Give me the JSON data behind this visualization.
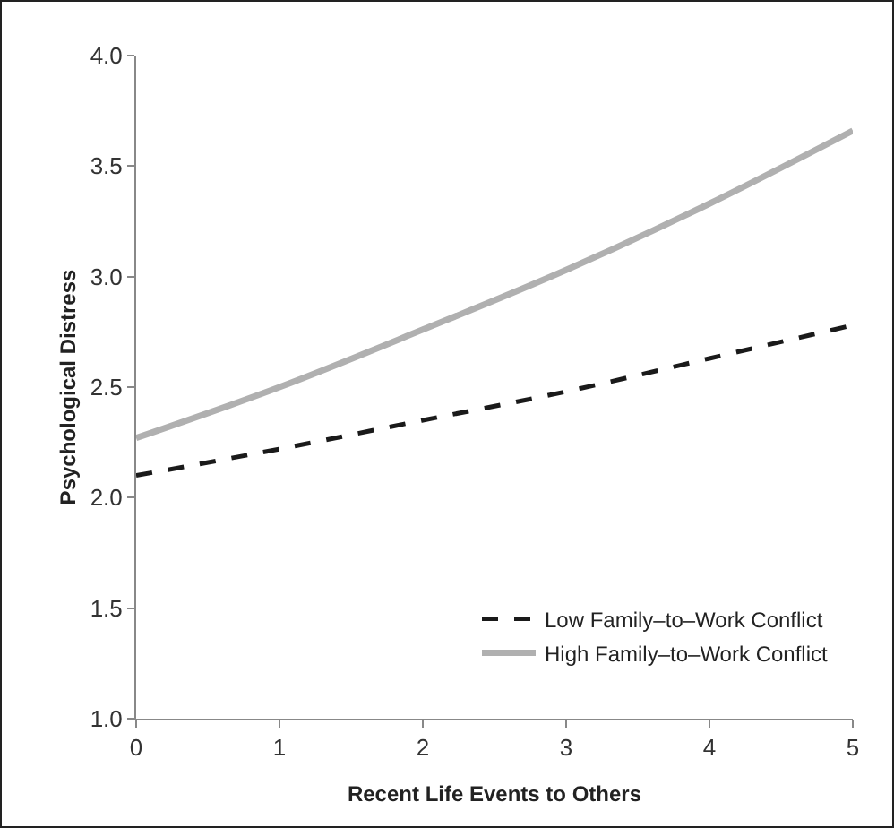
{
  "chart_data": {
    "type": "line",
    "xlabel": "Recent Life Events to Others",
    "ylabel": "Psychological Distress",
    "x": [
      0,
      1,
      2,
      3,
      4,
      5
    ],
    "series": [
      {
        "name": "Low Family–to–Work Conflict",
        "color": "#1a1a1a",
        "line_style": "dashed",
        "values": [
          2.1,
          2.22,
          2.35,
          2.48,
          2.63,
          2.78
        ]
      },
      {
        "name": "High Family–to–Work Conflict",
        "color": "#b0b0b0",
        "line_style": "solid",
        "values": [
          2.27,
          2.5,
          2.76,
          3.03,
          3.33,
          3.66
        ]
      }
    ],
    "xlim": [
      0,
      5
    ],
    "xticks": [
      0,
      1,
      2,
      3,
      4,
      5
    ],
    "ylim": [
      1,
      4
    ],
    "yticks": [
      {
        "value": 1,
        "label": "1.0"
      },
      {
        "value": 1.5,
        "label": "1.5"
      },
      {
        "value": 2,
        "label": "2.0"
      },
      {
        "value": 2.5,
        "label": "2.5"
      },
      {
        "value": 3,
        "label": "3.0"
      },
      {
        "value": 3.5,
        "label": "3.5"
      },
      {
        "value": 4,
        "label": "4.0"
      }
    ],
    "grid": false,
    "legend": "bottom right",
    "marker": "none"
  }
}
